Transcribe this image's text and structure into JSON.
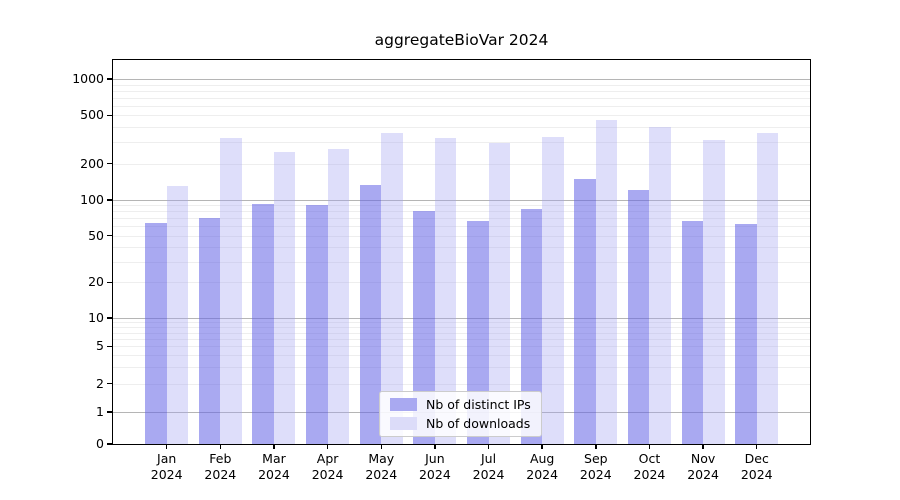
{
  "chart_data": {
    "type": "bar",
    "title": "aggregateBioVar 2024",
    "x_categories": [
      "Jan",
      "Feb",
      "Mar",
      "Apr",
      "May",
      "Jun",
      "Jul",
      "Aug",
      "Sep",
      "Oct",
      "Nov",
      "Dec"
    ],
    "x_year": "2024",
    "series": [
      {
        "name": "Nb of distinct IPs",
        "legend_color": "#a9a9f1",
        "fill": "rgba(99,99,230,0.55)",
        "values": [
          64,
          70,
          93,
          91,
          134,
          81,
          66,
          84,
          149,
          121,
          67,
          62
        ]
      },
      {
        "name": "Nb of downloads",
        "legend_color": "#dcdcf9",
        "fill": "rgba(161,161,241,0.35)",
        "values": [
          130,
          325,
          250,
          265,
          358,
          325,
          296,
          332,
          460,
          400,
          313,
          358
        ]
      }
    ],
    "yscale": "symlog",
    "y_ticks": [
      0,
      1,
      2,
      5,
      10,
      20,
      50,
      100,
      200,
      500,
      1000
    ],
    "ylim": [
      0,
      1400
    ],
    "grid": true,
    "legend_position": "lower center"
  },
  "colors": {
    "grid_major": "#b5b5b5",
    "grid_minor": "#eeeeee",
    "spine": "#000000",
    "background": "#ffffff"
  }
}
